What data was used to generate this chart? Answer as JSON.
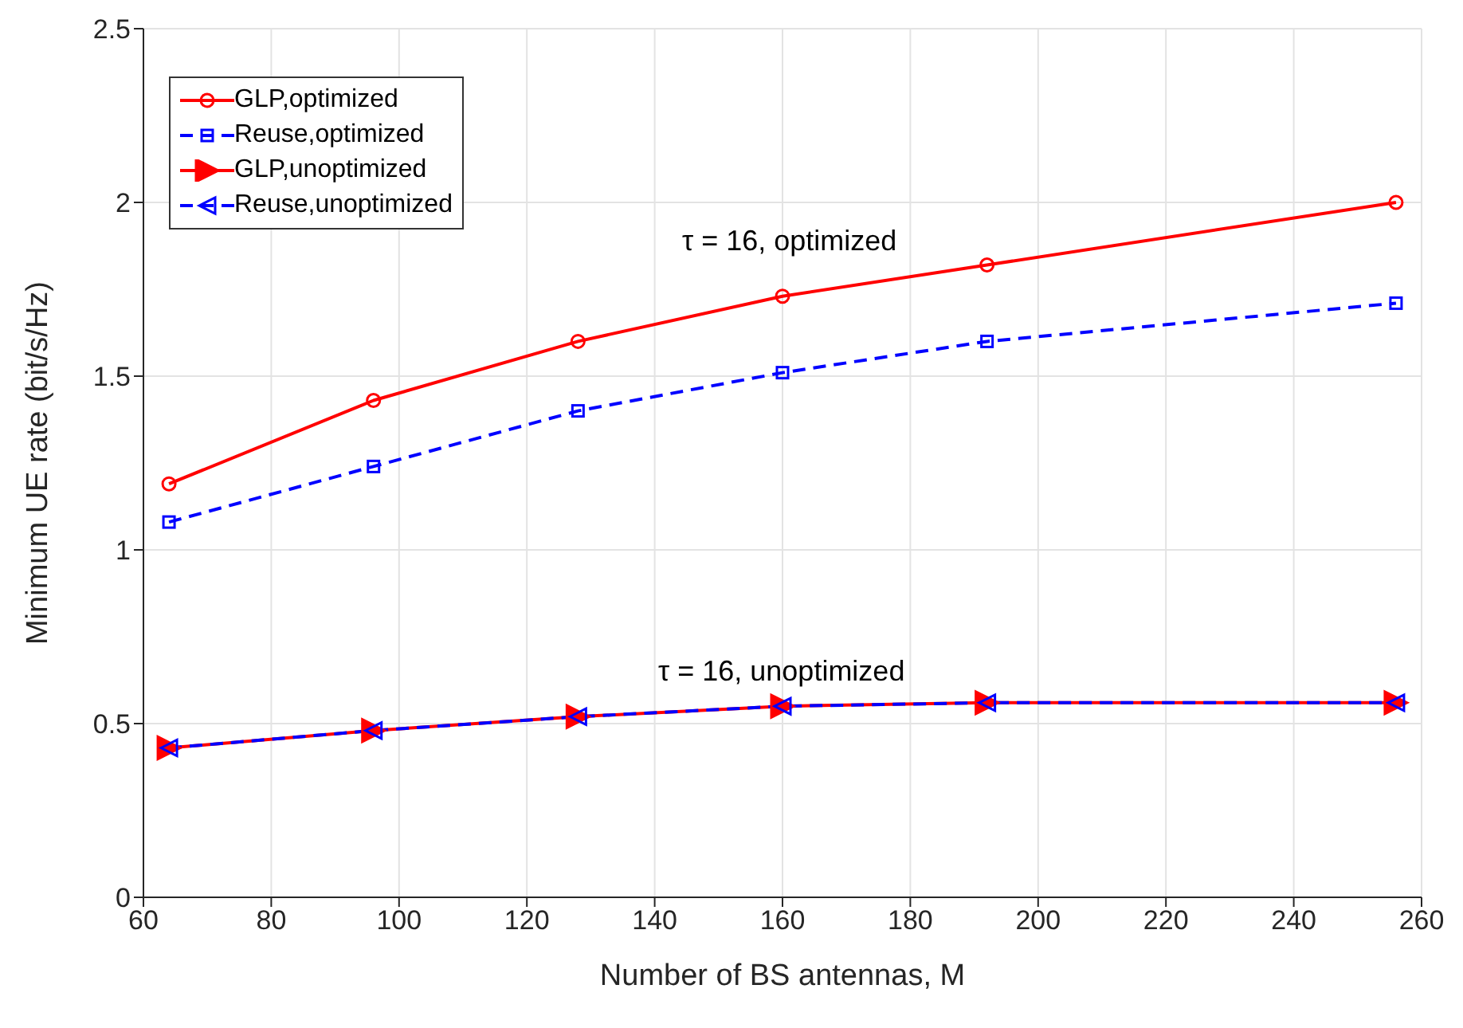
{
  "chart_data": {
    "type": "line",
    "xlabel": "Number of BS antennas, M",
    "ylabel": "Minimum UE rate (bit/s/Hz)",
    "x": [
      64,
      96,
      128,
      160,
      192,
      256
    ],
    "series": [
      {
        "name": "GLP,optimized",
        "color": "#ff0000",
        "marker": "circle",
        "line_style": "solid",
        "values": [
          1.19,
          1.43,
          1.6,
          1.73,
          1.82,
          2.0
        ]
      },
      {
        "name": "Reuse,optimized",
        "color": "#0000ff",
        "marker": "square",
        "line_style": "dashed",
        "values": [
          1.08,
          1.24,
          1.4,
          1.51,
          1.6,
          1.71
        ]
      },
      {
        "name": "GLP,unoptimized",
        "color": "#ff0000",
        "marker": "triangle",
        "line_style": "solid",
        "values": [
          0.43,
          0.48,
          0.52,
          0.55,
          0.56,
          0.56
        ]
      },
      {
        "name": "Reuse,unoptimized",
        "color": "#0000ff",
        "marker": "triangle",
        "line_style": "dashed",
        "values": [
          0.43,
          0.48,
          0.52,
          0.55,
          0.56,
          0.56
        ]
      }
    ],
    "annotations": [
      "τ = 16, optimized",
      "τ = 16, unoptimized"
    ],
    "xlim": [
      60,
      260
    ],
    "xticks": [
      60,
      80,
      100,
      120,
      140,
      160,
      180,
      200,
      220,
      240,
      260
    ],
    "ylim": [
      0,
      2.5
    ],
    "yticks": [
      0,
      0.5,
      1,
      1.5,
      2,
      2.5
    ],
    "grid": true,
    "legend": "top left"
  }
}
